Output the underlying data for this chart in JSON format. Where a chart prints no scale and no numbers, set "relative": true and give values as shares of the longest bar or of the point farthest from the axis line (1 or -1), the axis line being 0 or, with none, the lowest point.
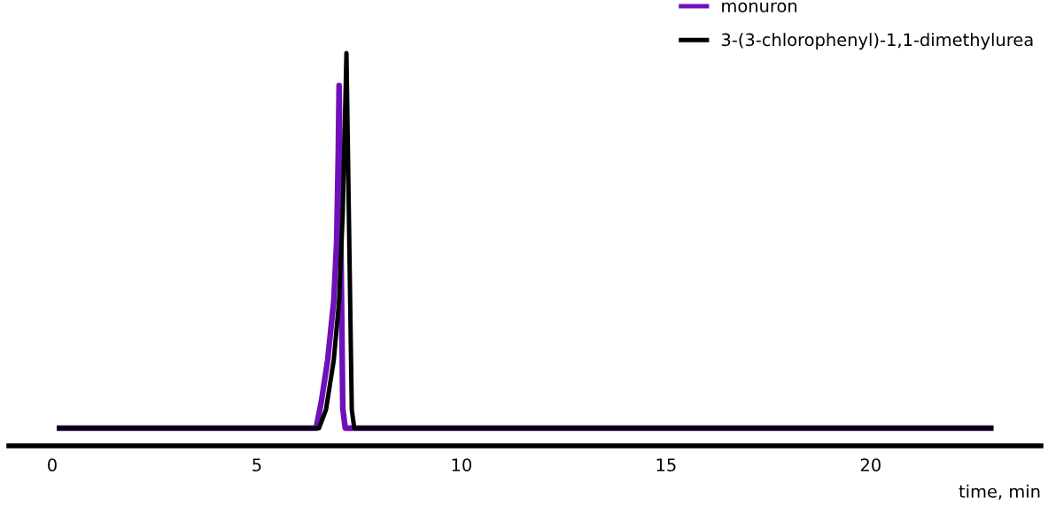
{
  "chart_data": {
    "type": "line",
    "relative": true,
    "xlabel": "time, min",
    "xlim": [
      -1.06,
      24.16
    ],
    "xticks": [
      0,
      5,
      10,
      15,
      20
    ],
    "grid": false,
    "legend": "top right",
    "marker": "none",
    "line_style": "solid",
    "tick_labels": "x",
    "series": [
      {
        "name": "monuron",
        "color": "#7010bb",
        "x": [
          0.11,
          6.45,
          6.58,
          6.73,
          6.88,
          6.95,
          6.99,
          7.01,
          7.1,
          7.16,
          23.0
        ],
        "values": [
          0.045,
          0.045,
          0.115,
          0.218,
          0.369,
          0.52,
          0.745,
          0.917,
          0.095,
          0.045,
          0.045
        ]
      },
      {
        "name": "3-(3-chlorophenyl)-1,1-dimethylurea",
        "color": "#000000",
        "x": [
          0.11,
          6.52,
          6.69,
          6.88,
          7.01,
          7.1,
          7.19,
          7.32,
          7.38,
          23.0
        ],
        "values": [
          0.045,
          0.045,
          0.092,
          0.218,
          0.369,
          0.594,
          1.0,
          0.092,
          0.045,
          0.045
        ]
      }
    ]
  }
}
